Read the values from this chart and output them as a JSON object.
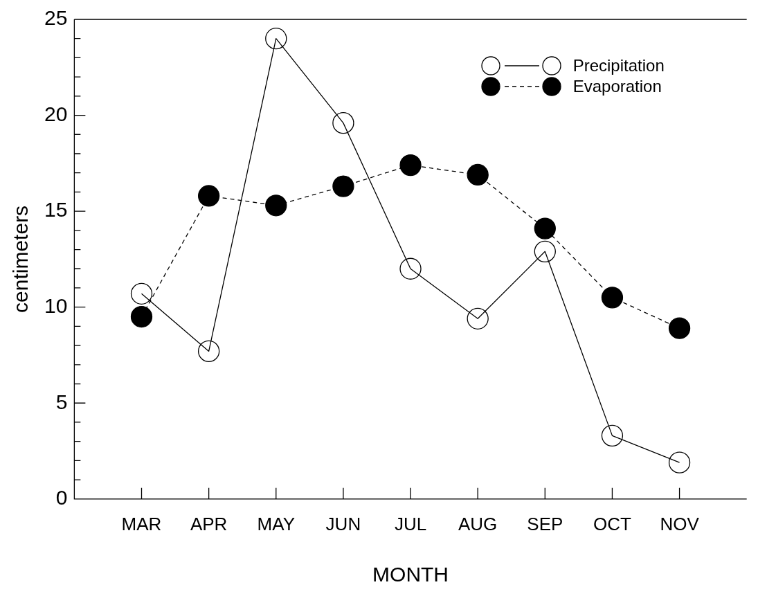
{
  "chart_data": {
    "type": "line",
    "xlabel": "MONTH",
    "ylabel": "centimeters",
    "categories": [
      "MAR",
      "APR",
      "MAY",
      "JUN",
      "JUL",
      "AUG",
      "SEP",
      "OCT",
      "NOV"
    ],
    "ylim": [
      0,
      25
    ],
    "yticks": [
      0,
      {
        "value": 1,
        "label": null
      },
      {
        "value": 2,
        "label": null
      },
      {
        "value": 3,
        "label": null
      },
      {
        "value": 4,
        "label": null
      },
      5,
      {
        "value": 6,
        "label": null
      },
      {
        "value": 7,
        "label": null
      },
      {
        "value": 8,
        "label": null
      },
      {
        "value": 9,
        "label": null
      },
      10,
      {
        "value": 11,
        "label": null
      },
      {
        "value": 12,
        "label": null
      },
      {
        "value": 13,
        "label": null
      },
      {
        "value": 14,
        "label": null
      },
      15,
      {
        "value": 16,
        "label": null
      },
      {
        "value": 17,
        "label": null
      },
      {
        "value": 18,
        "label": null
      },
      {
        "value": 19,
        "label": null
      },
      20,
      {
        "value": 21,
        "label": null
      },
      {
        "value": 22,
        "label": null
      },
      {
        "value": 23,
        "label": null
      },
      {
        "value": 24,
        "label": null
      },
      25
    ],
    "grid": false,
    "legend": "top right",
    "marker": "circle",
    "series": [
      {
        "name": "Precipitation",
        "color": "#000000",
        "line_style": "solid",
        "values": [
          10.7,
          7.7,
          24.0,
          19.6,
          12.0,
          9.4,
          12.9,
          3.3,
          1.9
        ]
      },
      {
        "name": "Evaporation",
        "color": "#000000",
        "line_style": "dashed",
        "values": [
          9.5,
          15.8,
          15.3,
          16.3,
          17.4,
          16.9,
          14.1,
          10.5,
          8.9
        ]
      }
    ]
  }
}
